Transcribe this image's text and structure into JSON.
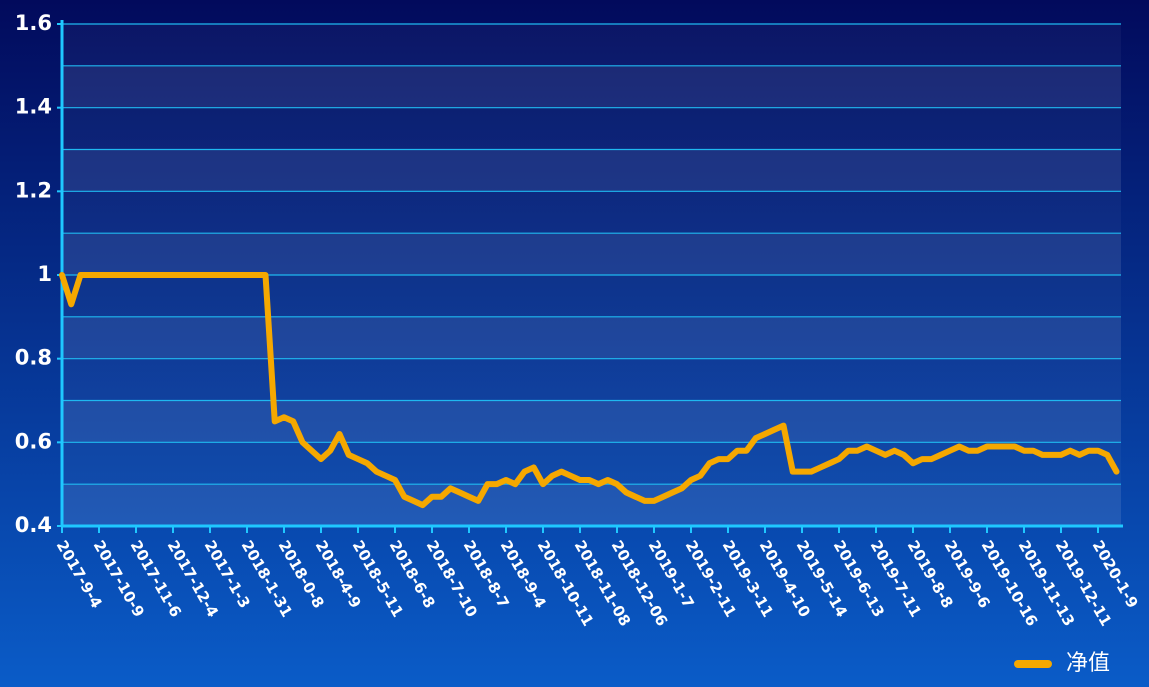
{
  "chart_data": {
    "type": "line",
    "categories": [
      "2017-9-4",
      null,
      null,
      null,
      "2017-10-9",
      null,
      null,
      null,
      "2017-11-6",
      null,
      null,
      null,
      "2017-12-4",
      null,
      null,
      null,
      "2017-1-3",
      null,
      null,
      null,
      "2018-1-31",
      null,
      null,
      null,
      "2018-0-8",
      null,
      null,
      null,
      "2018-4-9",
      null,
      null,
      null,
      "2018-5-11",
      null,
      null,
      null,
      "2018-6-8",
      null,
      null,
      null,
      "2018-7-10",
      null,
      null,
      null,
      "2018-8-7",
      null,
      null,
      null,
      "2018-9-4",
      null,
      null,
      null,
      "2018-10-11",
      null,
      null,
      null,
      "2018-11-08",
      null,
      null,
      null,
      "2018-12-06",
      null,
      null,
      null,
      "2019-1-7",
      null,
      null,
      null,
      "2019-2-11",
      null,
      null,
      null,
      "2019-3-11",
      null,
      null,
      null,
      "2019-4-10",
      null,
      null,
      null,
      "2019-5-14",
      null,
      null,
      null,
      "2019-6-13",
      null,
      null,
      null,
      "2019-7-11",
      null,
      null,
      null,
      "2019-8-8",
      null,
      null,
      null,
      "2019-9-6",
      null,
      null,
      null,
      "2019-10-16",
      null,
      null,
      null,
      "2019-11-13",
      null,
      null,
      null,
      "2019-12-11",
      null,
      null,
      null,
      "2020-1-9",
      null,
      null
    ],
    "series": [
      {
        "name": "净值",
        "color": "#f5a800",
        "values": [
          1.0,
          0.93,
          1.0,
          1.0,
          1.0,
          1.0,
          1.0,
          1.0,
          1.0,
          1.0,
          1.0,
          1.0,
          1.0,
          1.0,
          1.0,
          1.0,
          1.0,
          1.0,
          1.0,
          1.0,
          1.0,
          1.0,
          1.0,
          0.65,
          0.66,
          0.65,
          0.6,
          0.58,
          0.56,
          0.58,
          0.62,
          0.57,
          0.56,
          0.55,
          0.53,
          0.52,
          0.51,
          0.47,
          0.46,
          0.45,
          0.47,
          0.47,
          0.49,
          0.48,
          0.47,
          0.46,
          0.5,
          0.5,
          0.51,
          0.5,
          0.53,
          0.54,
          0.5,
          0.52,
          0.53,
          0.52,
          0.51,
          0.51,
          0.5,
          0.51,
          0.5,
          0.48,
          0.47,
          0.46,
          0.46,
          0.47,
          0.48,
          0.49,
          0.51,
          0.52,
          0.55,
          0.56,
          0.56,
          0.58,
          0.58,
          0.61,
          0.62,
          0.63,
          0.64,
          0.53,
          0.53,
          0.53,
          0.54,
          0.55,
          0.56,
          0.58,
          0.58,
          0.59,
          0.58,
          0.57,
          0.58,
          0.57,
          0.55,
          0.56,
          0.56,
          0.57,
          0.58,
          0.59,
          0.58,
          0.58,
          0.59,
          0.59,
          0.59,
          0.59,
          0.58,
          0.58,
          0.57,
          0.57,
          0.57,
          0.58,
          0.57,
          0.58,
          0.58,
          0.57,
          0.53
        ]
      }
    ],
    "ylim": [
      0.4,
      1.6
    ],
    "yticks": [
      0.4,
      0.6,
      0.8,
      1,
      1.2,
      1.4,
      1.6
    ],
    "grid": true,
    "legend": "bottom-right"
  }
}
